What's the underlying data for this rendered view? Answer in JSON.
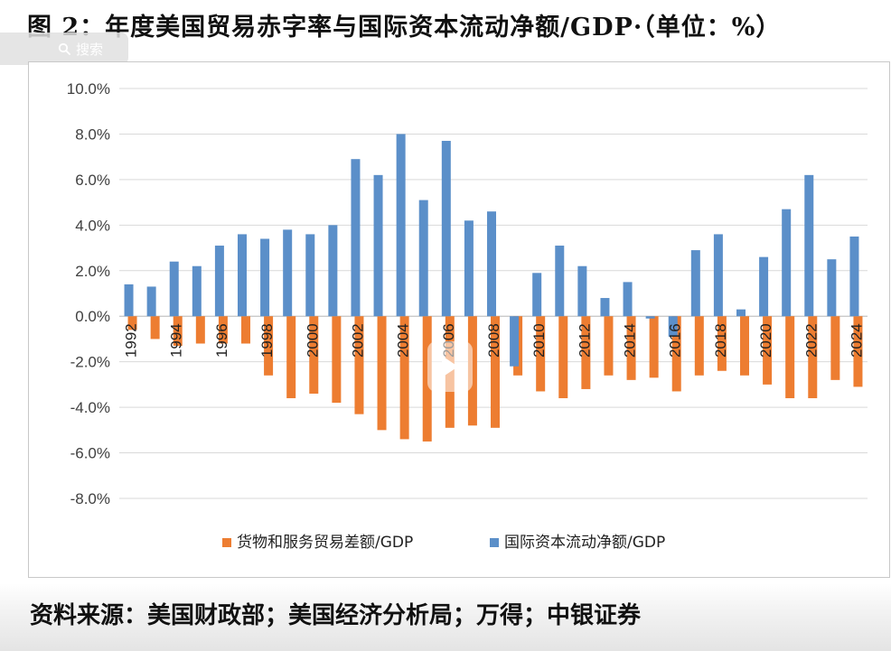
{
  "title": "图 2：年度美国贸易赤字率与国际资本流动净额/GDP·（单位：%）",
  "search_label": "搜索",
  "footer": "资料来源：美国财政部；美国经济分析局；万得；中银证券",
  "colors": {
    "trade": "#ED7D31",
    "capital": "#5B8FC9",
    "grid": "#d9d9d9",
    "text": "#404040"
  },
  "chart_data": {
    "type": "bar",
    "title": "",
    "xlabel": "",
    "ylabel": "",
    "ylim": [
      -8,
      10
    ],
    "yticks": [
      "10.0%",
      "8.0%",
      "6.0%",
      "4.0%",
      "2.0%",
      "0.0%",
      "-2.0%",
      "-4.0%",
      "-6.0%",
      "-8.0%"
    ],
    "ytick_values": [
      10,
      8,
      6,
      4,
      2,
      0,
      -2,
      -4,
      -6,
      -8
    ],
    "grid": true,
    "legend_position": "bottom",
    "categories": [
      "1992",
      "1993",
      "1994",
      "1995",
      "1996",
      "1997",
      "1998",
      "1999",
      "2000",
      "2001",
      "2002",
      "2003",
      "2004",
      "2005",
      "2006",
      "2007",
      "2008",
      "2009",
      "2010",
      "2011",
      "2012",
      "2013",
      "2014",
      "2015",
      "2016",
      "2017",
      "2018",
      "2019",
      "2020",
      "2021",
      "2022",
      "2023",
      "2024"
    ],
    "xtick_labels": [
      "1992",
      "1994",
      "1996",
      "1998",
      "2000",
      "2002",
      "2004",
      "2006",
      "2008",
      "2010",
      "2012",
      "2014",
      "2016",
      "2018",
      "2020",
      "2022",
      "2024"
    ],
    "series": [
      {
        "name": "货物和服务贸易差额/GDP",
        "values": [
          -0.6,
          -1.0,
          -1.3,
          -1.2,
          -1.2,
          -1.2,
          -2.6,
          -3.6,
          -3.4,
          -3.8,
          -4.3,
          -5.0,
          -5.4,
          -5.5,
          -4.9,
          -4.8,
          -4.9,
          -2.6,
          -3.3,
          -3.6,
          -3.2,
          -2.6,
          -2.8,
          -2.7,
          -3.3,
          -2.6,
          -2.4,
          -2.6,
          -3.0,
          -3.6,
          -3.6,
          -2.8,
          -3.1
        ]
      },
      {
        "name": "国际资本流动净额/GDP",
        "values": [
          1.4,
          1.3,
          2.4,
          2.2,
          3.1,
          3.6,
          3.4,
          3.8,
          3.6,
          4.0,
          6.9,
          6.2,
          8.0,
          5.1,
          7.7,
          4.2,
          4.6,
          -2.2,
          1.9,
          3.1,
          2.2,
          0.8,
          1.5,
          -0.1,
          -0.9,
          2.9,
          3.6,
          0.3,
          2.6,
          4.7,
          6.2,
          2.5,
          3.5
        ]
      }
    ]
  }
}
